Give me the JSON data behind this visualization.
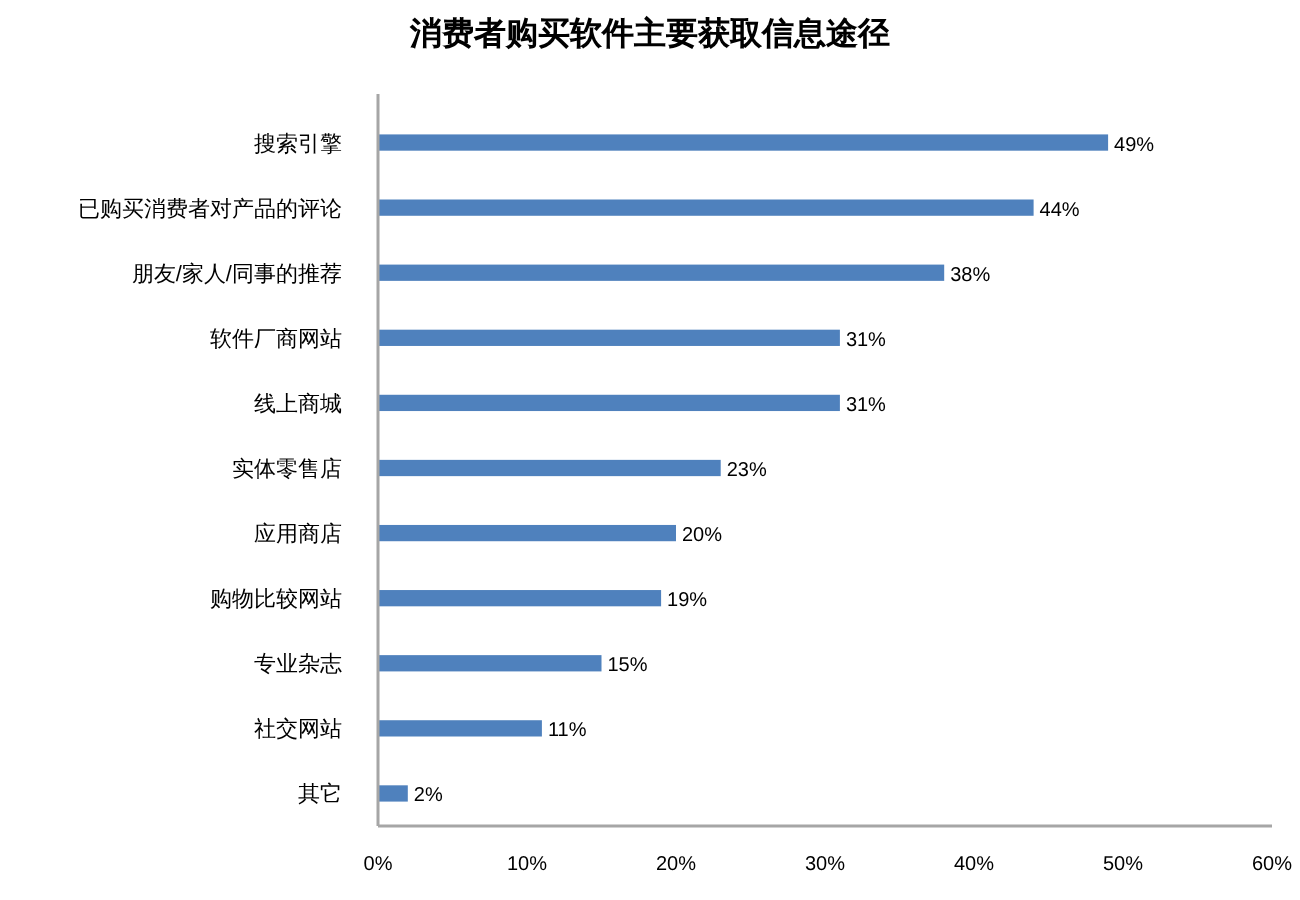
{
  "chart_data": {
    "type": "bar",
    "orientation": "horizontal",
    "title": "消费者购买软件主要获取信息途径",
    "categories": [
      "搜索引擎",
      "已购买消费者对产品的评论",
      "朋友/家人/同事的推荐",
      "软件厂商网站",
      "线上商城",
      "实体零售店",
      "应用商店",
      "购物比较网站",
      "专业杂志",
      "社交网站",
      "其它"
    ],
    "values": [
      49,
      44,
      38,
      31,
      31,
      23,
      20,
      19,
      15,
      11,
      2
    ],
    "value_labels": [
      "49%",
      "44%",
      "38%",
      "31%",
      "31%",
      "23%",
      "20%",
      "19%",
      "15%",
      "11%",
      "2%"
    ],
    "color": "#4f81bd",
    "xlim": [
      0,
      60
    ],
    "xticks": [
      {
        "value": 0,
        "label": "0%"
      },
      {
        "value": 10,
        "label": "10%"
      },
      {
        "value": 20,
        "label": "20%"
      },
      {
        "value": 30,
        "label": "30%"
      },
      {
        "value": 40,
        "label": "40%"
      },
      {
        "value": 50,
        "label": "50%"
      },
      {
        "value": 60,
        "label": "60%"
      }
    ]
  }
}
